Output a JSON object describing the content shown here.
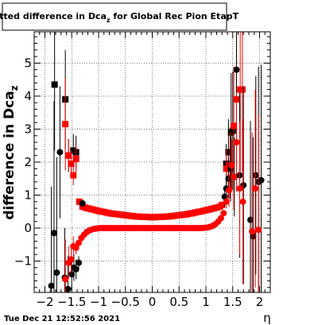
{
  "chart_data": {
    "type": "scatter",
    "title": "Fitted difference in Dca_z for Global Rec Pion EtapT",
    "title_main": "Fitted difference in Dca",
    "title_sub": "z",
    "title_tail": " for Global Rec Pion EtapT",
    "ylabel": "difference in Dca",
    "ylabel_sub": "z",
    "xlabel": "η",
    "timestamp": "Tue Dec 21 12:52:56 2021",
    "xlim": [
      -2.2,
      2.2
    ],
    "ylim": [
      -1.95,
      5.95
    ],
    "grid": true,
    "x_ticks": [
      -2,
      -1.5,
      -1,
      -0.5,
      0,
      0.5,
      1,
      1.5,
      2
    ],
    "x_tick_labels": [
      "−2",
      "−1.5",
      "−1",
      "−0.5",
      "0",
      "0.5",
      "1",
      "1.5",
      "2"
    ],
    "y_ticks": [
      -1,
      0,
      1,
      2,
      3,
      4,
      5
    ],
    "y_tick_labels": [
      "−1",
      "0",
      "1",
      "2",
      "3",
      "4",
      "5"
    ],
    "series": [
      {
        "marker": "square",
        "color": "#000000",
        "points": [
          {
            "x": -1.82,
            "y": 4.35,
            "e": 2.0
          },
          {
            "x": -1.62,
            "y": 3.9,
            "e": 1.5
          },
          {
            "x": -1.56,
            "y": 2.2,
            "e": 0.5
          },
          {
            "x": -1.47,
            "y": 2.35,
            "e": 0.5
          },
          {
            "x": -1.42,
            "y": 2.3,
            "e": 0.5
          },
          {
            "x": 1.38,
            "y": 1.95,
            "e": 0.6
          },
          {
            "x": 1.42,
            "y": 2.3,
            "e": 1.0
          },
          {
            "x": 1.47,
            "y": 2.9,
            "e": 1.8
          },
          {
            "x": 1.5,
            "y": 2.95,
            "e": 1.8
          }
        ]
      },
      {
        "marker": "square",
        "color": "#ff0000",
        "points": [
          {
            "x": -1.62,
            "y": 3.15,
            "e": 1.4
          },
          {
            "x": -1.56,
            "y": 2.2,
            "e": 0.5
          },
          {
            "x": -1.51,
            "y": 1.95,
            "e": 0.4
          },
          {
            "x": -1.47,
            "y": 1.6,
            "e": 0.3
          },
          {
            "x": -1.42,
            "y": 2.1,
            "e": 0.4
          },
          {
            "x": -1.36,
            "y": 0.8,
            "e": 0.1
          },
          {
            "x": -1.3,
            "y": 0.65
          },
          {
            "x": -1.25,
            "y": 0.62
          },
          {
            "x": -1.2,
            "y": 0.6
          },
          {
            "x": -1.15,
            "y": 0.58
          },
          {
            "x": -1.1,
            "y": 0.56
          },
          {
            "x": -1.05,
            "y": 0.54
          },
          {
            "x": -1.0,
            "y": 0.52
          },
          {
            "x": -0.95,
            "y": 0.5
          },
          {
            "x": -0.9,
            "y": 0.49
          },
          {
            "x": -0.85,
            "y": 0.47
          },
          {
            "x": -0.8,
            "y": 0.45
          },
          {
            "x": -0.75,
            "y": 0.44
          },
          {
            "x": -0.7,
            "y": 0.43
          },
          {
            "x": -0.65,
            "y": 0.42
          },
          {
            "x": -0.6,
            "y": 0.41
          },
          {
            "x": -0.55,
            "y": 0.4
          },
          {
            "x": -0.5,
            "y": 0.39
          },
          {
            "x": -0.45,
            "y": 0.38
          },
          {
            "x": -0.4,
            "y": 0.37
          },
          {
            "x": -0.35,
            "y": 0.36
          },
          {
            "x": -0.3,
            "y": 0.35
          },
          {
            "x": -0.25,
            "y": 0.35
          },
          {
            "x": -0.2,
            "y": 0.34
          },
          {
            "x": -0.15,
            "y": 0.34
          },
          {
            "x": -0.1,
            "y": 0.34
          },
          {
            "x": -0.05,
            "y": 0.33
          },
          {
            "x": 0.0,
            "y": 0.33
          },
          {
            "x": 0.05,
            "y": 0.33
          },
          {
            "x": 0.1,
            "y": 0.34
          },
          {
            "x": 0.15,
            "y": 0.34
          },
          {
            "x": 0.2,
            "y": 0.34
          },
          {
            "x": 0.25,
            "y": 0.35
          },
          {
            "x": 0.3,
            "y": 0.35
          },
          {
            "x": 0.35,
            "y": 0.36
          },
          {
            "x": 0.4,
            "y": 0.37
          },
          {
            "x": 0.45,
            "y": 0.38
          },
          {
            "x": 0.5,
            "y": 0.39
          },
          {
            "x": 0.55,
            "y": 0.4
          },
          {
            "x": 0.6,
            "y": 0.41
          },
          {
            "x": 0.65,
            "y": 0.42
          },
          {
            "x": 0.7,
            "y": 0.44
          },
          {
            "x": 0.75,
            "y": 0.45
          },
          {
            "x": 0.8,
            "y": 0.47
          },
          {
            "x": 0.85,
            "y": 0.49
          },
          {
            "x": 0.9,
            "y": 0.5
          },
          {
            "x": 0.95,
            "y": 0.52
          },
          {
            "x": 1.0,
            "y": 0.54
          },
          {
            "x": 1.05,
            "y": 0.56
          },
          {
            "x": 1.1,
            "y": 0.58
          },
          {
            "x": 1.15,
            "y": 0.6
          },
          {
            "x": 1.2,
            "y": 0.62
          },
          {
            "x": 1.26,
            "y": 0.65
          },
          {
            "x": 1.3,
            "y": 0.7
          },
          {
            "x": 1.38,
            "y": 1.8,
            "e": 0.6
          },
          {
            "x": 1.45,
            "y": 1.9,
            "e": 1.0
          },
          {
            "x": 1.52,
            "y": 3.1,
            "e": 1.8
          },
          {
            "x": 1.57,
            "y": 3.9,
            "e": 2.0
          },
          {
            "x": 1.64,
            "y": 4.2,
            "e": 2.5
          },
          {
            "x": 1.68,
            "y": 4.2,
            "e": 2.5
          }
        ]
      },
      {
        "marker": "circle",
        "color": "#000000",
        "points": [
          {
            "x": -1.88,
            "y": -1.75,
            "e": 3.0
          },
          {
            "x": -1.83,
            "y": -0.15,
            "e": 4.0
          },
          {
            "x": -1.78,
            "y": -1.35,
            "e": 3.5
          },
          {
            "x": -1.72,
            "y": 2.3,
            "e": 2.0
          },
          {
            "x": -1.63,
            "y": -1.5,
            "e": 1.5
          },
          {
            "x": -1.57,
            "y": -1.85,
            "e": 1.0
          },
          {
            "x": -1.5,
            "y": -1.4,
            "e": 0.5
          },
          {
            "x": -1.46,
            "y": -1.2,
            "e": 0.4
          },
          {
            "x": -1.42,
            "y": -1.25,
            "e": 0.3
          },
          {
            "x": -1.37,
            "y": -1.05,
            "e": 0.2
          },
          {
            "x": -1.3,
            "y": 0.75
          },
          {
            "x": 1.35,
            "y": 0.95,
            "e": 0.3
          },
          {
            "x": 1.38,
            "y": 1.2,
            "e": 0.4
          },
          {
            "x": 1.42,
            "y": 1.5,
            "e": 0.6
          },
          {
            "x": 1.46,
            "y": 1.8,
            "e": 1.0
          },
          {
            "x": 1.53,
            "y": 1.55,
            "e": 1.2
          },
          {
            "x": 1.57,
            "y": 4.8,
            "e": 2.0
          },
          {
            "x": 1.63,
            "y": 1.6,
            "e": 2.5
          },
          {
            "x": 1.7,
            "y": 1.3,
            "e": 3.0
          },
          {
            "x": 1.83,
            "y": 0.25,
            "e": 3.0
          },
          {
            "x": 1.88,
            "y": -0.25,
            "e": 3.0
          },
          {
            "x": 1.93,
            "y": 1.6,
            "e": 3.0
          },
          {
            "x": 1.98,
            "y": 1.4,
            "e": 3.5
          },
          {
            "x": 2.03,
            "y": 1.45,
            "e": 3.5
          }
        ]
      },
      {
        "marker": "circle",
        "color": "#ff0000",
        "points": [
          {
            "x": -1.62,
            "y": -1.55,
            "e": 1.2
          },
          {
            "x": -1.56,
            "y": -1.05,
            "e": 0.5
          },
          {
            "x": -1.51,
            "y": -0.95,
            "e": 0.4
          },
          {
            "x": -1.47,
            "y": -0.55,
            "e": 0.3
          },
          {
            "x": -1.42,
            "y": -0.6,
            "e": 0.2
          },
          {
            "x": -1.37,
            "y": -0.45,
            "e": 0.1
          },
          {
            "x": -1.32,
            "y": -0.3
          },
          {
            "x": -1.27,
            "y": -0.2
          },
          {
            "x": -1.22,
            "y": -0.12
          },
          {
            "x": -1.17,
            "y": -0.07
          },
          {
            "x": -1.12,
            "y": -0.04
          },
          {
            "x": -1.07,
            "y": -0.02
          },
          {
            "x": -1.02,
            "y": -0.01
          },
          {
            "x": -0.97,
            "y": 0.0
          },
          {
            "x": -0.92,
            "y": 0.0
          },
          {
            "x": -0.87,
            "y": 0.0
          },
          {
            "x": -0.82,
            "y": 0.0
          },
          {
            "x": -0.77,
            "y": 0.0
          },
          {
            "x": -0.72,
            "y": 0.0
          },
          {
            "x": -0.67,
            "y": 0.0
          },
          {
            "x": -0.62,
            "y": 0.0
          },
          {
            "x": -0.57,
            "y": 0.0
          },
          {
            "x": -0.52,
            "y": 0.0
          },
          {
            "x": -0.47,
            "y": 0.0
          },
          {
            "x": -0.42,
            "y": 0.0
          },
          {
            "x": -0.37,
            "y": 0.0
          },
          {
            "x": -0.32,
            "y": 0.0
          },
          {
            "x": -0.27,
            "y": 0.0
          },
          {
            "x": -0.22,
            "y": 0.0
          },
          {
            "x": -0.17,
            "y": 0.0
          },
          {
            "x": -0.12,
            "y": 0.0
          },
          {
            "x": -0.07,
            "y": 0.0
          },
          {
            "x": -0.02,
            "y": 0.0
          },
          {
            "x": 0.03,
            "y": 0.0
          },
          {
            "x": 0.08,
            "y": 0.0
          },
          {
            "x": 0.13,
            "y": 0.0
          },
          {
            "x": 0.18,
            "y": 0.0
          },
          {
            "x": 0.23,
            "y": 0.0
          },
          {
            "x": 0.28,
            "y": 0.0
          },
          {
            "x": 0.33,
            "y": 0.0
          },
          {
            "x": 0.38,
            "y": 0.0
          },
          {
            "x": 0.43,
            "y": 0.0
          },
          {
            "x": 0.48,
            "y": 0.0
          },
          {
            "x": 0.53,
            "y": 0.0
          },
          {
            "x": 0.58,
            "y": 0.0
          },
          {
            "x": 0.63,
            "y": 0.0
          },
          {
            "x": 0.68,
            "y": 0.0
          },
          {
            "x": 0.73,
            "y": 0.0
          },
          {
            "x": 0.78,
            "y": 0.0
          },
          {
            "x": 0.83,
            "y": 0.0
          },
          {
            "x": 0.88,
            "y": 0.0
          },
          {
            "x": 0.93,
            "y": 0.0
          },
          {
            "x": 0.98,
            "y": 0.01
          },
          {
            "x": 1.03,
            "y": 0.02
          },
          {
            "x": 1.08,
            "y": 0.04
          },
          {
            "x": 1.13,
            "y": 0.07
          },
          {
            "x": 1.18,
            "y": 0.12
          },
          {
            "x": 1.23,
            "y": 0.2
          },
          {
            "x": 1.28,
            "y": 0.3
          },
          {
            "x": 1.33,
            "y": 0.45
          },
          {
            "x": 1.38,
            "y": 0.8,
            "e": 0.2
          },
          {
            "x": 1.43,
            "y": 1.15,
            "e": 0.5
          },
          {
            "x": 1.48,
            "y": 1.9,
            "e": 0.8
          },
          {
            "x": 1.52,
            "y": 1.55,
            "e": 1.0
          },
          {
            "x": 1.57,
            "y": 2.6,
            "e": 1.5
          },
          {
            "x": 1.63,
            "y": 1.2,
            "e": 2.0
          },
          {
            "x": 1.69,
            "y": 0.8,
            "e": 2.5
          },
          {
            "x": 1.86,
            "y": -0.1,
            "e": 3.0
          },
          {
            "x": 1.92,
            "y": 1.2,
            "e": 3.0
          },
          {
            "x": 1.98,
            "y": -0.05,
            "e": 3.5
          }
        ]
      }
    ]
  }
}
